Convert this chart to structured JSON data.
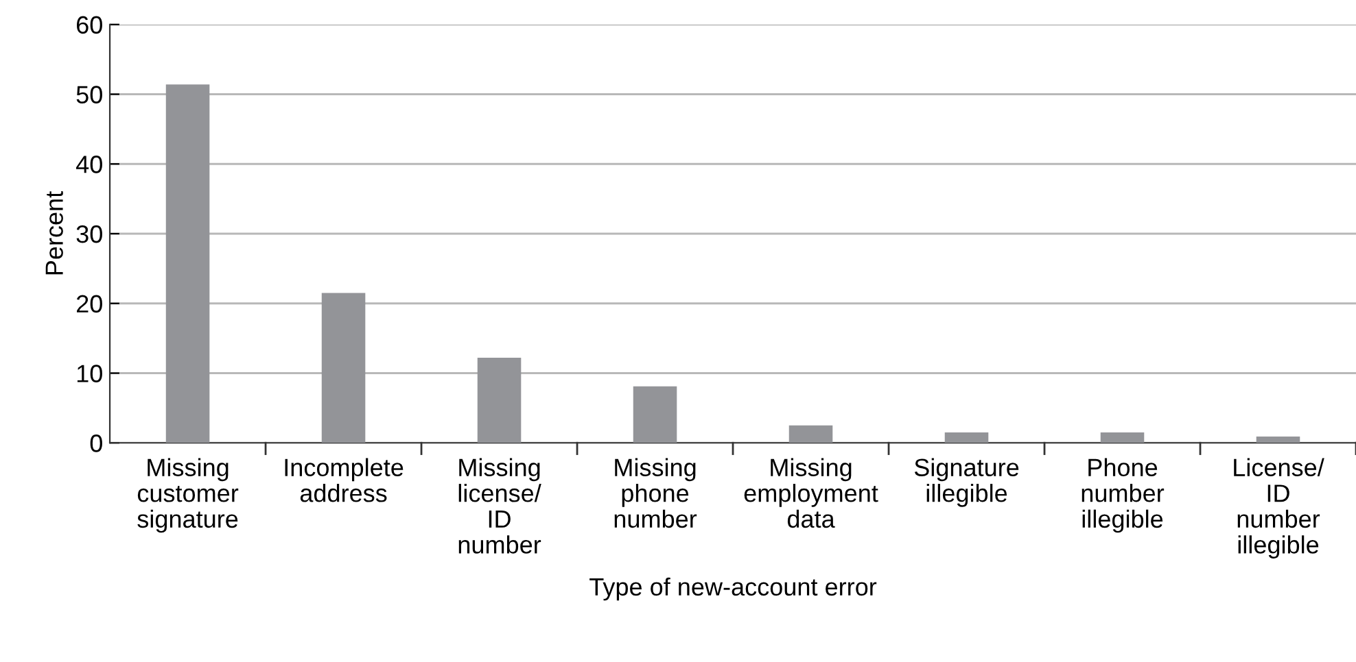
{
  "chart_data": {
    "type": "bar",
    "xlabel": "Type of new-account error",
    "ylabel": "Percent",
    "categories": [
      "Missing\ncustomer\nsignature",
      "Incomplete\naddress",
      "Missing\nlicense/\nID\nnumber",
      "Missing\nphone\nnumber",
      "Missing\nemployment\ndata",
      "Signature\nillegible",
      "Phone\nnumber\nillegible",
      "License/\nID\nnumber\nillegible"
    ],
    "values": [
      51.4,
      21.5,
      12.2,
      8.1,
      2.5,
      1.5,
      1.5,
      0.9
    ],
    "color": "#939498",
    "ylim": [
      0,
      60
    ],
    "yticks": [
      0,
      10,
      20,
      30,
      40,
      50,
      60
    ],
    "grid": "y",
    "legend": false
  }
}
